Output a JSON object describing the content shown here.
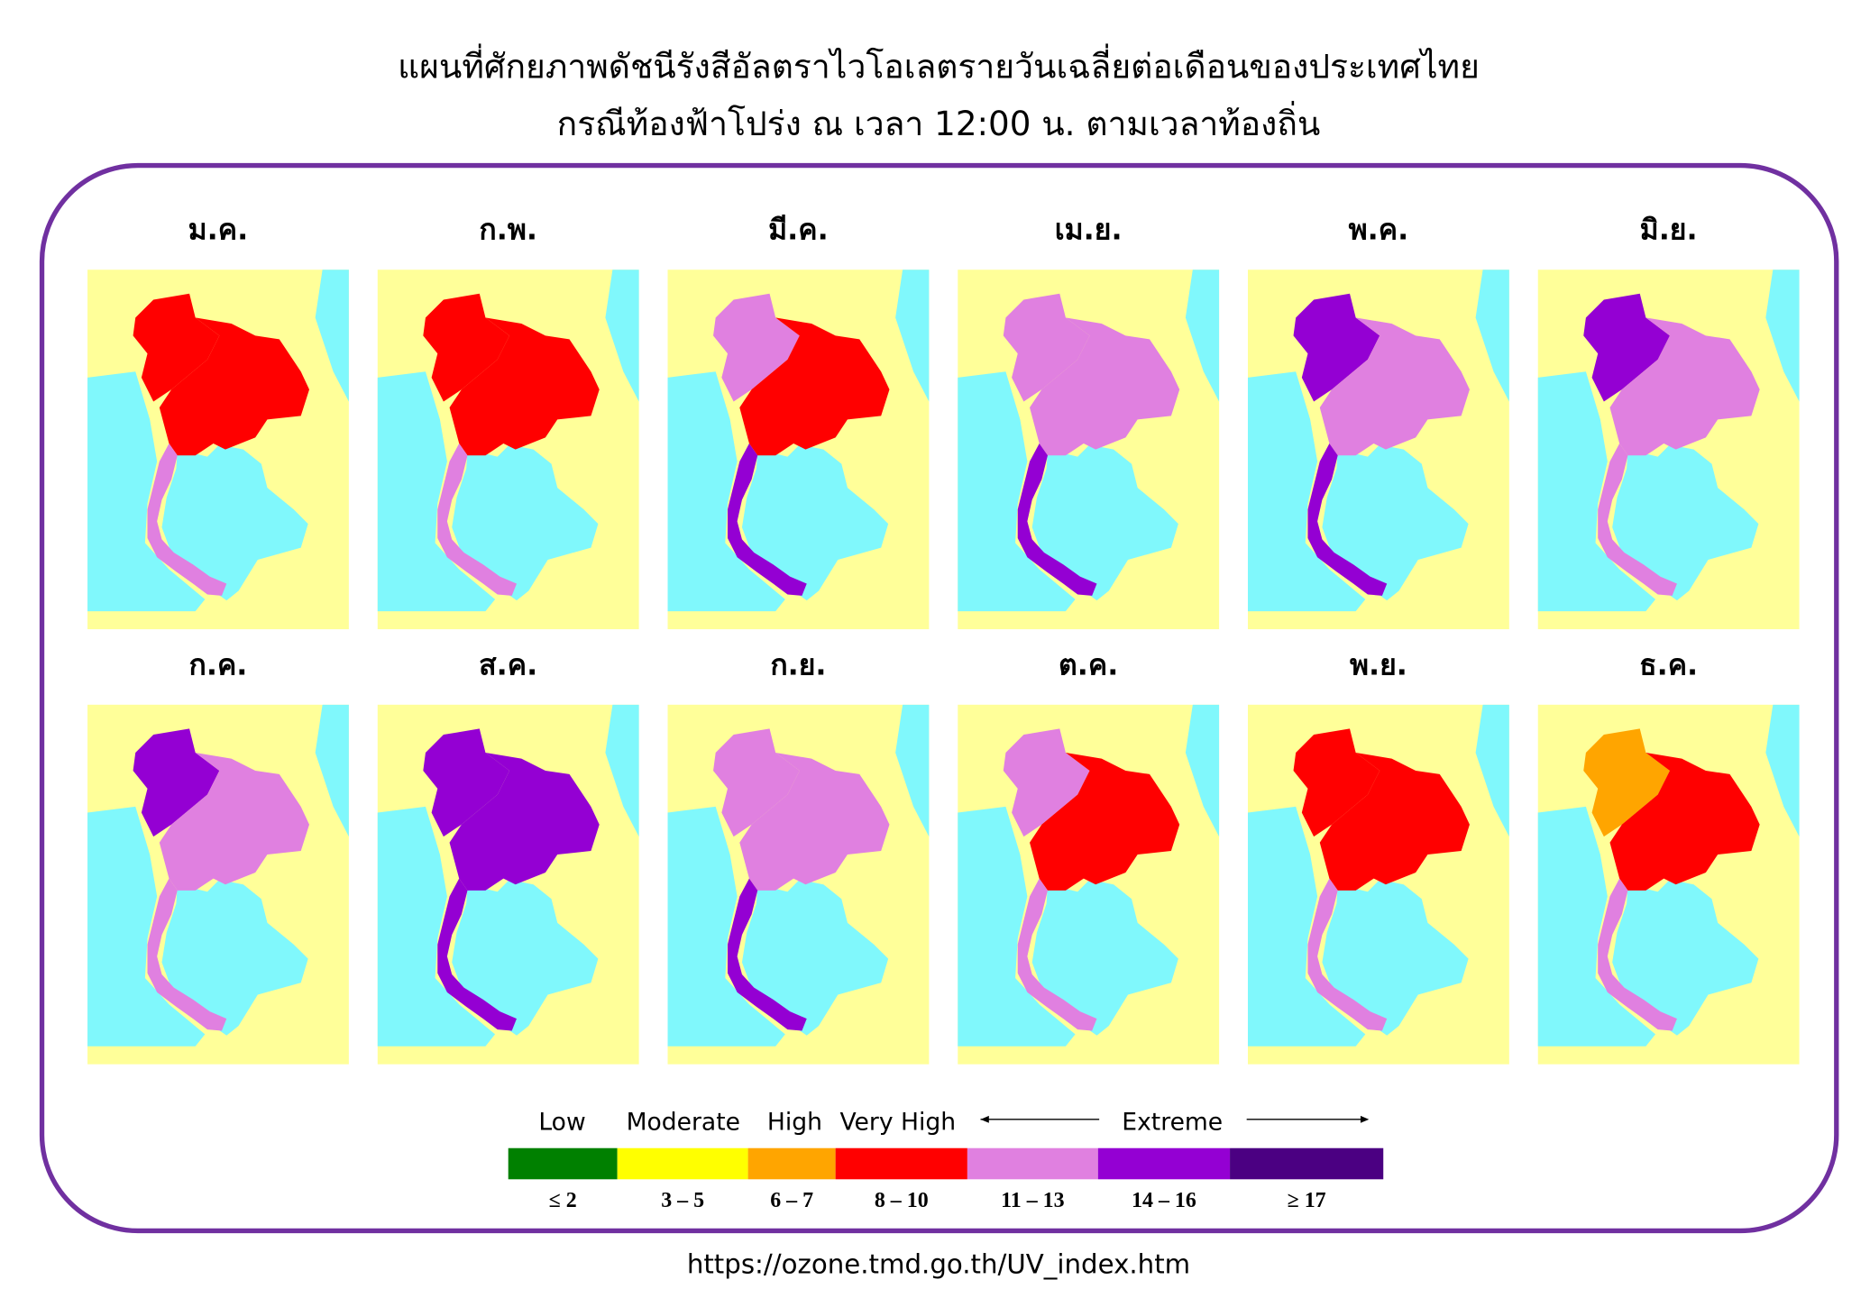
{
  "header": {
    "title_line1": "แผนที่ศักยภาพดัชนีรังสีอัลตราไวโอเลตรายวันเฉลี่ยต่อเดือนของประเทศไทย",
    "title_line2": "กรณีท้องฟ้าโปร่ง ณ เวลา 12:00 น. ตามเวลาท้องถิ่น"
  },
  "maps": [
    {
      "label": "ม.ค.",
      "colors": [
        "#ff0000",
        "#ff0000",
        "#e080e0"
      ]
    },
    {
      "label": "ก.พ.",
      "colors": [
        "#ff0000",
        "#ff0000",
        "#e080e0"
      ]
    },
    {
      "label": "มี.ค.",
      "colors": [
        "#e080e0",
        "#ff0000",
        "#9400d3"
      ]
    },
    {
      "label": "เม.ย.",
      "colors": [
        "#e080e0",
        "#e080e0",
        "#9400d3"
      ]
    },
    {
      "label": "พ.ค.",
      "colors": [
        "#9400d3",
        "#e080e0",
        "#9400d3"
      ]
    },
    {
      "label": "มิ.ย.",
      "colors": [
        "#9400d3",
        "#e080e0",
        "#e080e0"
      ]
    },
    {
      "label": "ก.ค.",
      "colors": [
        "#9400d3",
        "#e080e0",
        "#e080e0"
      ]
    },
    {
      "label": "ส.ค.",
      "colors": [
        "#9400d3",
        "#9400d3",
        "#9400d3"
      ]
    },
    {
      "label": "ก.ย.",
      "colors": [
        "#e080e0",
        "#e080e0",
        "#9400d3"
      ]
    },
    {
      "label": "ต.ค.",
      "colors": [
        "#e080e0",
        "#ff0000",
        "#e080e0"
      ]
    },
    {
      "label": "พ.ย.",
      "colors": [
        "#ff0000",
        "#ff0000",
        "#e080e0"
      ]
    },
    {
      "label": "ธ.ค.",
      "colors": [
        "#ffa500",
        "#ff0000",
        "#e080e0"
      ]
    }
  ],
  "legend": {
    "labels": [
      "Low",
      "Moderate",
      "High",
      "Very High",
      "Extreme"
    ],
    "levels": [
      {
        "color": "#008000",
        "range": "≤ 2"
      },
      {
        "color": "#ffff00",
        "range": "3 – 5"
      },
      {
        "color": "#ffa500",
        "range": "6 – 7"
      },
      {
        "color": "#ff0000",
        "range": "8 – 10"
      },
      {
        "color": "#e080e0",
        "range": "11 – 13"
      },
      {
        "color": "#9400d3",
        "range": "14 – 16"
      },
      {
        "color": "#4b0082",
        "range": "≥ 17"
      }
    ]
  },
  "source": "https://ozone.tmd.go.th/UV_index.htm"
}
